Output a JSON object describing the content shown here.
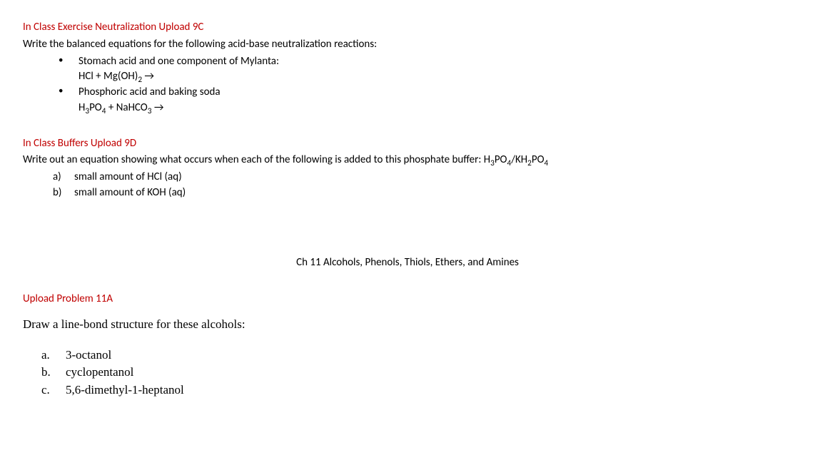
{
  "section9C": {
    "heading": "In Class Exercise Neutralization Upload 9C",
    "intro": "Write the balanced equations for the following acid-base neutralization reactions:",
    "bullets": [
      {
        "label": "Stomach acid and one component of Mylanta:",
        "equation_html": "HCl + Mg(OH)<sub>2</sub> →"
      },
      {
        "label": "Phosphoric acid and baking soda",
        "equation_html": "H<sub>3</sub>PO<sub>4</sub> + NaHCO<sub>3</sub> →"
      }
    ]
  },
  "section9D": {
    "heading": "In Class Buffers Upload 9D",
    "intro_html": "Write out an equation showing what occurs when each of the following is added to this phosphate buffer: H<sub>3</sub>PO<sub>4</sub>/KH<sub>2</sub>PO<sub>4</sub>",
    "items": [
      {
        "marker": "a)",
        "text": "small amount of HCl (aq)"
      },
      {
        "marker": "b)",
        "text": "small amount of KOH (aq)"
      }
    ]
  },
  "chapter": {
    "title": "Ch 11 Alcohols, Phenols, Thiols, Ethers, and Amines"
  },
  "section11A": {
    "heading": "Upload Problem 11A",
    "intro": "Draw a line-bond structure for these alcohols:",
    "items": [
      {
        "marker": "a.",
        "text": "3-octanol"
      },
      {
        "marker": "b.",
        "text": "cyclopentanol"
      },
      {
        "marker": "c.",
        "text": "5,6-dimethyl-1-heptanol"
      }
    ]
  },
  "colors": {
    "heading_red": "#c00000",
    "text": "#000000",
    "background": "#ffffff"
  }
}
